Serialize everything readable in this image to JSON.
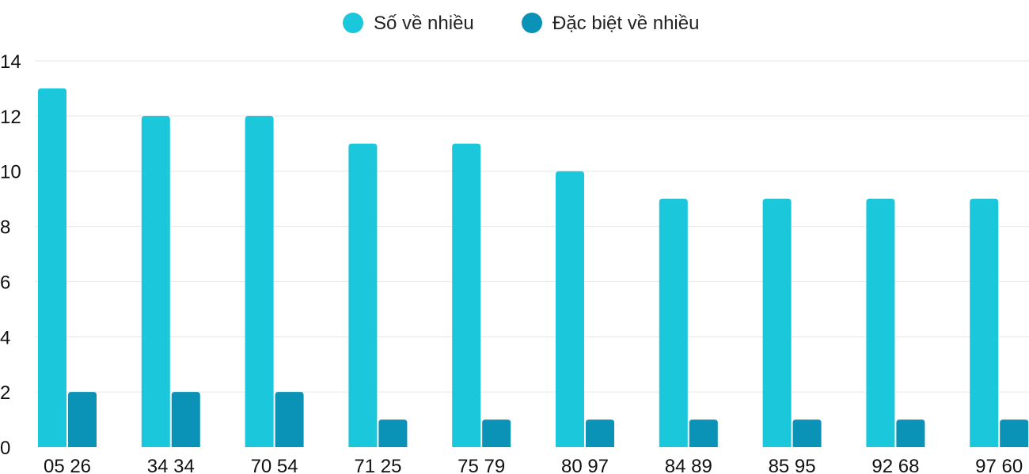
{
  "chart_data": {
    "type": "bar",
    "categories": [
      "05 26",
      "34 34",
      "70 54",
      "71 25",
      "75 79",
      "80 97",
      "84 89",
      "85 95",
      "92 68",
      "97 60"
    ],
    "series": [
      {
        "name": "Số về nhiều",
        "color": "#1bc7da",
        "values": [
          13,
          12,
          12,
          11,
          11,
          10,
          9,
          9,
          9,
          9
        ]
      },
      {
        "name": "Đặc biệt về nhiều",
        "color": "#0a93b6",
        "values": [
          2,
          2,
          2,
          1,
          1,
          1,
          1,
          1,
          1,
          1
        ]
      }
    ],
    "title": "",
    "xlabel": "",
    "ylabel": "",
    "ylim": [
      0,
      14
    ],
    "yticks": [
      0,
      2,
      4,
      6,
      8,
      10,
      12,
      14
    ],
    "grid": true,
    "legend": "top-center"
  }
}
